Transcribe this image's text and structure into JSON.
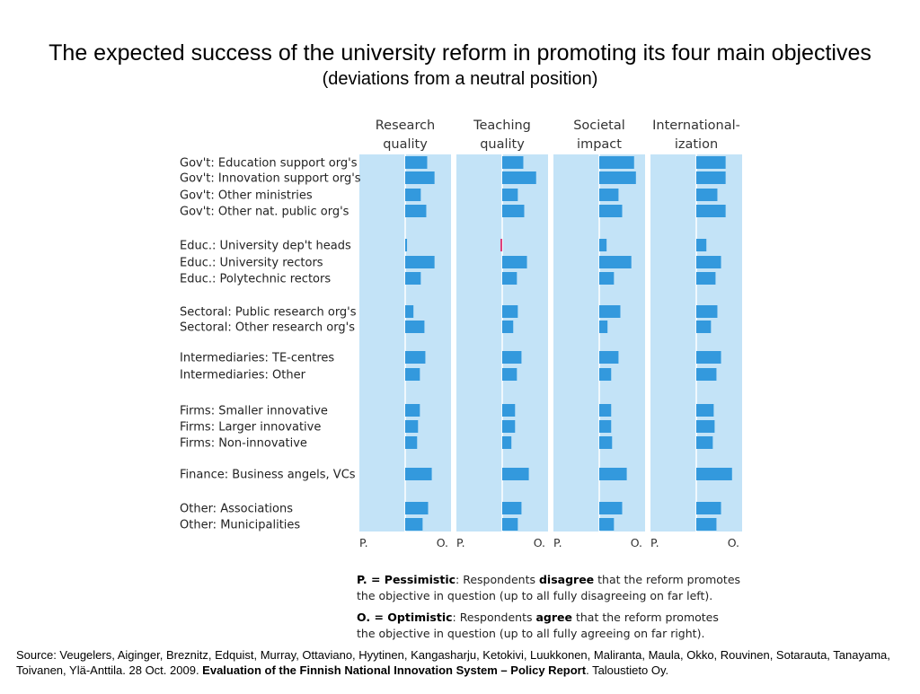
{
  "chart_data": {
    "type": "bar",
    "title": "The expected success of the university reform in promoting its four main objectives",
    "subtitle": "(deviations from a neutral position)",
    "panels": [
      {
        "header": [
          "Research",
          "quality"
        ]
      },
      {
        "header": [
          "Teaching",
          "quality"
        ]
      },
      {
        "header": [
          "Societal",
          "impact"
        ]
      },
      {
        "header": [
          "International-",
          "ization"
        ]
      }
    ],
    "axis_left_label": "P.",
    "axis_right_label": "O.",
    "categories": [
      "Gov't: Education support org's",
      "Gov't: Innovation support org's",
      "Gov't: Other ministries",
      "Gov't: Other nat. public org's",
      "Educ.: University dep't heads",
      "Educ.: University rectors",
      "Educ.: Polytechnic rectors",
      "Sectoral: Public research org's",
      "Sectoral: Other research org's",
      "Intermediaries: TE-centres",
      "Intermediaries: Other",
      "Firms: Smaller innovative",
      "Firms: Larger innovative",
      "Firms: Non-innovative",
      "Finance: Business angels, VCs",
      "Other: Associations",
      "Other: Municipalities"
    ],
    "groups": [
      [
        0,
        1,
        2,
        3
      ],
      [
        4,
        5,
        6
      ],
      [
        7,
        8
      ],
      [
        9,
        10
      ],
      [
        11,
        12,
        13
      ],
      [
        14
      ],
      [
        15,
        16
      ]
    ],
    "series": [
      {
        "name": "Research quality",
        "values": [
          0.24,
          0.32,
          0.17,
          0.23,
          0.02,
          0.32,
          0.17,
          0.09,
          0.21,
          0.22,
          0.16,
          0.16,
          0.14,
          0.13,
          0.29,
          0.25,
          0.19
        ]
      },
      {
        "name": "Teaching quality",
        "values": [
          0.23,
          0.37,
          0.17,
          0.24,
          -0.02,
          0.27,
          0.16,
          0.17,
          0.12,
          0.21,
          0.16,
          0.14,
          0.14,
          0.1,
          0.29,
          0.21,
          0.17
        ]
      },
      {
        "name": "Societal impact",
        "values": [
          0.38,
          0.4,
          0.21,
          0.25,
          0.08,
          0.35,
          0.16,
          0.23,
          0.09,
          0.21,
          0.13,
          0.13,
          0.13,
          0.14,
          0.3,
          0.25,
          0.16
        ]
      },
      {
        "name": "Internationalization",
        "values": [
          0.32,
          0.32,
          0.23,
          0.32,
          0.11,
          0.27,
          0.21,
          0.23,
          0.16,
          0.27,
          0.22,
          0.19,
          0.2,
          0.18,
          0.39,
          0.27,
          0.22
        ]
      }
    ],
    "xlim": [
      -0.5,
      0.5
    ],
    "colors": {
      "panel_bg": "#c3e3f7",
      "bar": "#3399dd",
      "negative_bar": "#e0407a",
      "neutral_line": "#ffffff"
    }
  },
  "legend": {
    "p_term": "P. = Pessimistic",
    "p_mid": ": Respondents ",
    "p_keyword": "disagree",
    "p_rest": " that the reform promotes",
    "p_line2": "the objective in question (up to all fully disagreeing on far left).",
    "o_term": "O. = Optimistic",
    "o_mid": ": Respondents ",
    "o_keyword": "agree",
    "o_rest": " that the reform promotes",
    "o_line2": "the objective in question (up to all fully agreeing on far right)."
  },
  "source": {
    "text": "Source: Veugelers, Aiginger, Breznitz, Edquist, Murray, Ottaviano, Hyytinen, Kangasharju, Ketokivi, Luukkonen, Maliranta, Maula, Okko, Rouvinen, Sotarauta, Tanayama, Toivanen, Ylä-Anttila. 28 Oct. 2009. ",
    "bold": "Evaluation of the Finnish National Innovation System – Policy Report",
    "tail": ". Taloustieto Oy."
  }
}
